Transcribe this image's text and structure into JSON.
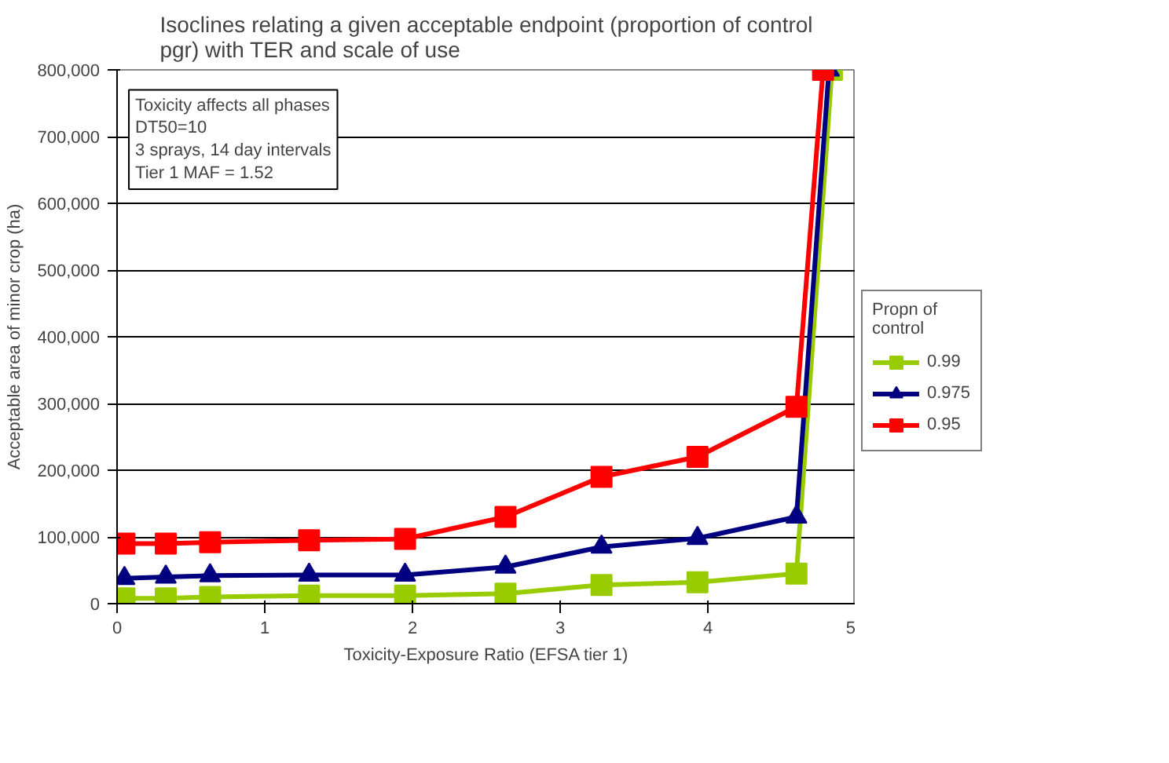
{
  "chart_data": {
    "type": "line",
    "title": "Isoclines relating a given acceptable endpoint (proportion of control pgr)  with TER and scale of use",
    "xlabel": "Toxicity-Exposure Ratio (EFSA tier 1)",
    "ylabel": "Acceptable area of minor crop (ha)",
    "legend_title": "Propn of control",
    "annotations": [
      "Toxicity affects all phases",
      "DT50=10",
      "3 sprays, 14 day intervals",
      "Tier 1 MAF = 1.52"
    ],
    "xlim": [
      0,
      5
    ],
    "ylim": [
      0,
      800000
    ],
    "xticks": [
      0,
      1,
      2,
      3,
      4,
      5
    ],
    "yticks": [
      {
        "value": 0,
        "label": "0"
      },
      {
        "value": 100000,
        "label": "100,000"
      },
      {
        "value": 200000,
        "label": "200,000"
      },
      {
        "value": 300000,
        "label": "300,000"
      },
      {
        "value": 400000,
        "label": "400,000"
      },
      {
        "value": 500000,
        "label": "500,000"
      },
      {
        "value": 600000,
        "label": "600,000"
      },
      {
        "value": 700000,
        "label": "700,000"
      },
      {
        "value": 800000,
        "label": "800,000"
      }
    ],
    "grid": "y",
    "legend": "right",
    "line_style": "solid",
    "series": [
      {
        "name": "0.99",
        "color": "#99cc00",
        "marker": "square",
        "x": [
          0.05,
          0.33,
          0.63,
          1.3,
          1.95,
          2.63,
          3.28,
          3.93,
          4.6,
          4.84
        ],
        "values": [
          8000,
          8000,
          10000,
          12000,
          12000,
          15000,
          28000,
          32000,
          45000,
          800000
        ]
      },
      {
        "name": "0.975",
        "color": "#000080",
        "marker": "triangle",
        "x": [
          0.05,
          0.33,
          0.63,
          1.3,
          1.95,
          2.63,
          3.28,
          3.93,
          4.6,
          4.82
        ],
        "values": [
          38000,
          40000,
          42000,
          43000,
          43000,
          55000,
          85000,
          98000,
          130000,
          800000
        ]
      },
      {
        "name": "0.95",
        "color": "#ff0000",
        "marker": "square",
        "x": [
          0.05,
          0.33,
          0.63,
          1.3,
          1.95,
          2.63,
          3.28,
          3.93,
          4.6,
          4.78
        ],
        "values": [
          90000,
          90000,
          92000,
          95000,
          97000,
          130000,
          190000,
          220000,
          295000,
          800000
        ]
      }
    ]
  }
}
